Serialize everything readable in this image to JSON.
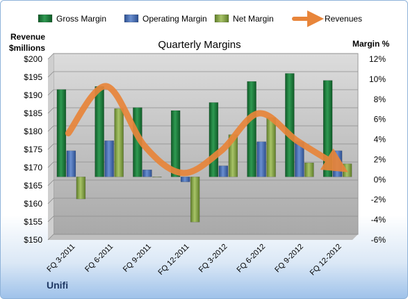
{
  "chart_data": {
    "type": "bar",
    "title": "Quarterly Margins",
    "company": "Unifi",
    "y_left_label": [
      "Revenue",
      "$millions"
    ],
    "y_right_label": "Margin %",
    "categories": [
      "FQ 3-2011",
      "FQ 6-2011",
      "FQ 9-2011",
      "FQ 12-2011",
      "FQ 3-2012",
      "FQ 6-2012",
      "FQ 9-2012",
      "FQ 12-2012"
    ],
    "series": [
      {
        "name": "Gross Margin",
        "type": "bar",
        "axis": "right",
        "color": "#1e7a3c",
        "values": [
          8.7,
          9.0,
          6.9,
          6.6,
          7.4,
          9.5,
          10.3,
          9.6
        ]
      },
      {
        "name": "Operating Margin",
        "type": "bar",
        "axis": "right",
        "color": "#4a6fb0",
        "values": [
          2.6,
          3.6,
          0.7,
          -0.5,
          1.1,
          3.5,
          3.5,
          2.6
        ]
      },
      {
        "name": "Net Margin",
        "type": "bar",
        "axis": "right",
        "color": "#8fae4a",
        "values": [
          -2.2,
          6.8,
          0.0,
          -4.5,
          4.2,
          5.9,
          1.4,
          1.3
        ]
      },
      {
        "name": "Revenues",
        "type": "line",
        "axis": "left",
        "color": "#e8853a",
        "values": [
          179.5,
          192.5,
          176.0,
          168.5,
          174.5,
          185.0,
          177.5,
          171.0
        ]
      }
    ],
    "y_left": {
      "min": 150,
      "max": 200,
      "step": 5,
      "tick_prefix": "$"
    },
    "y_right": {
      "min": -6,
      "max": 12,
      "step": 2,
      "tick_suffix": "%"
    },
    "legend_position": "top",
    "grid": true
  }
}
